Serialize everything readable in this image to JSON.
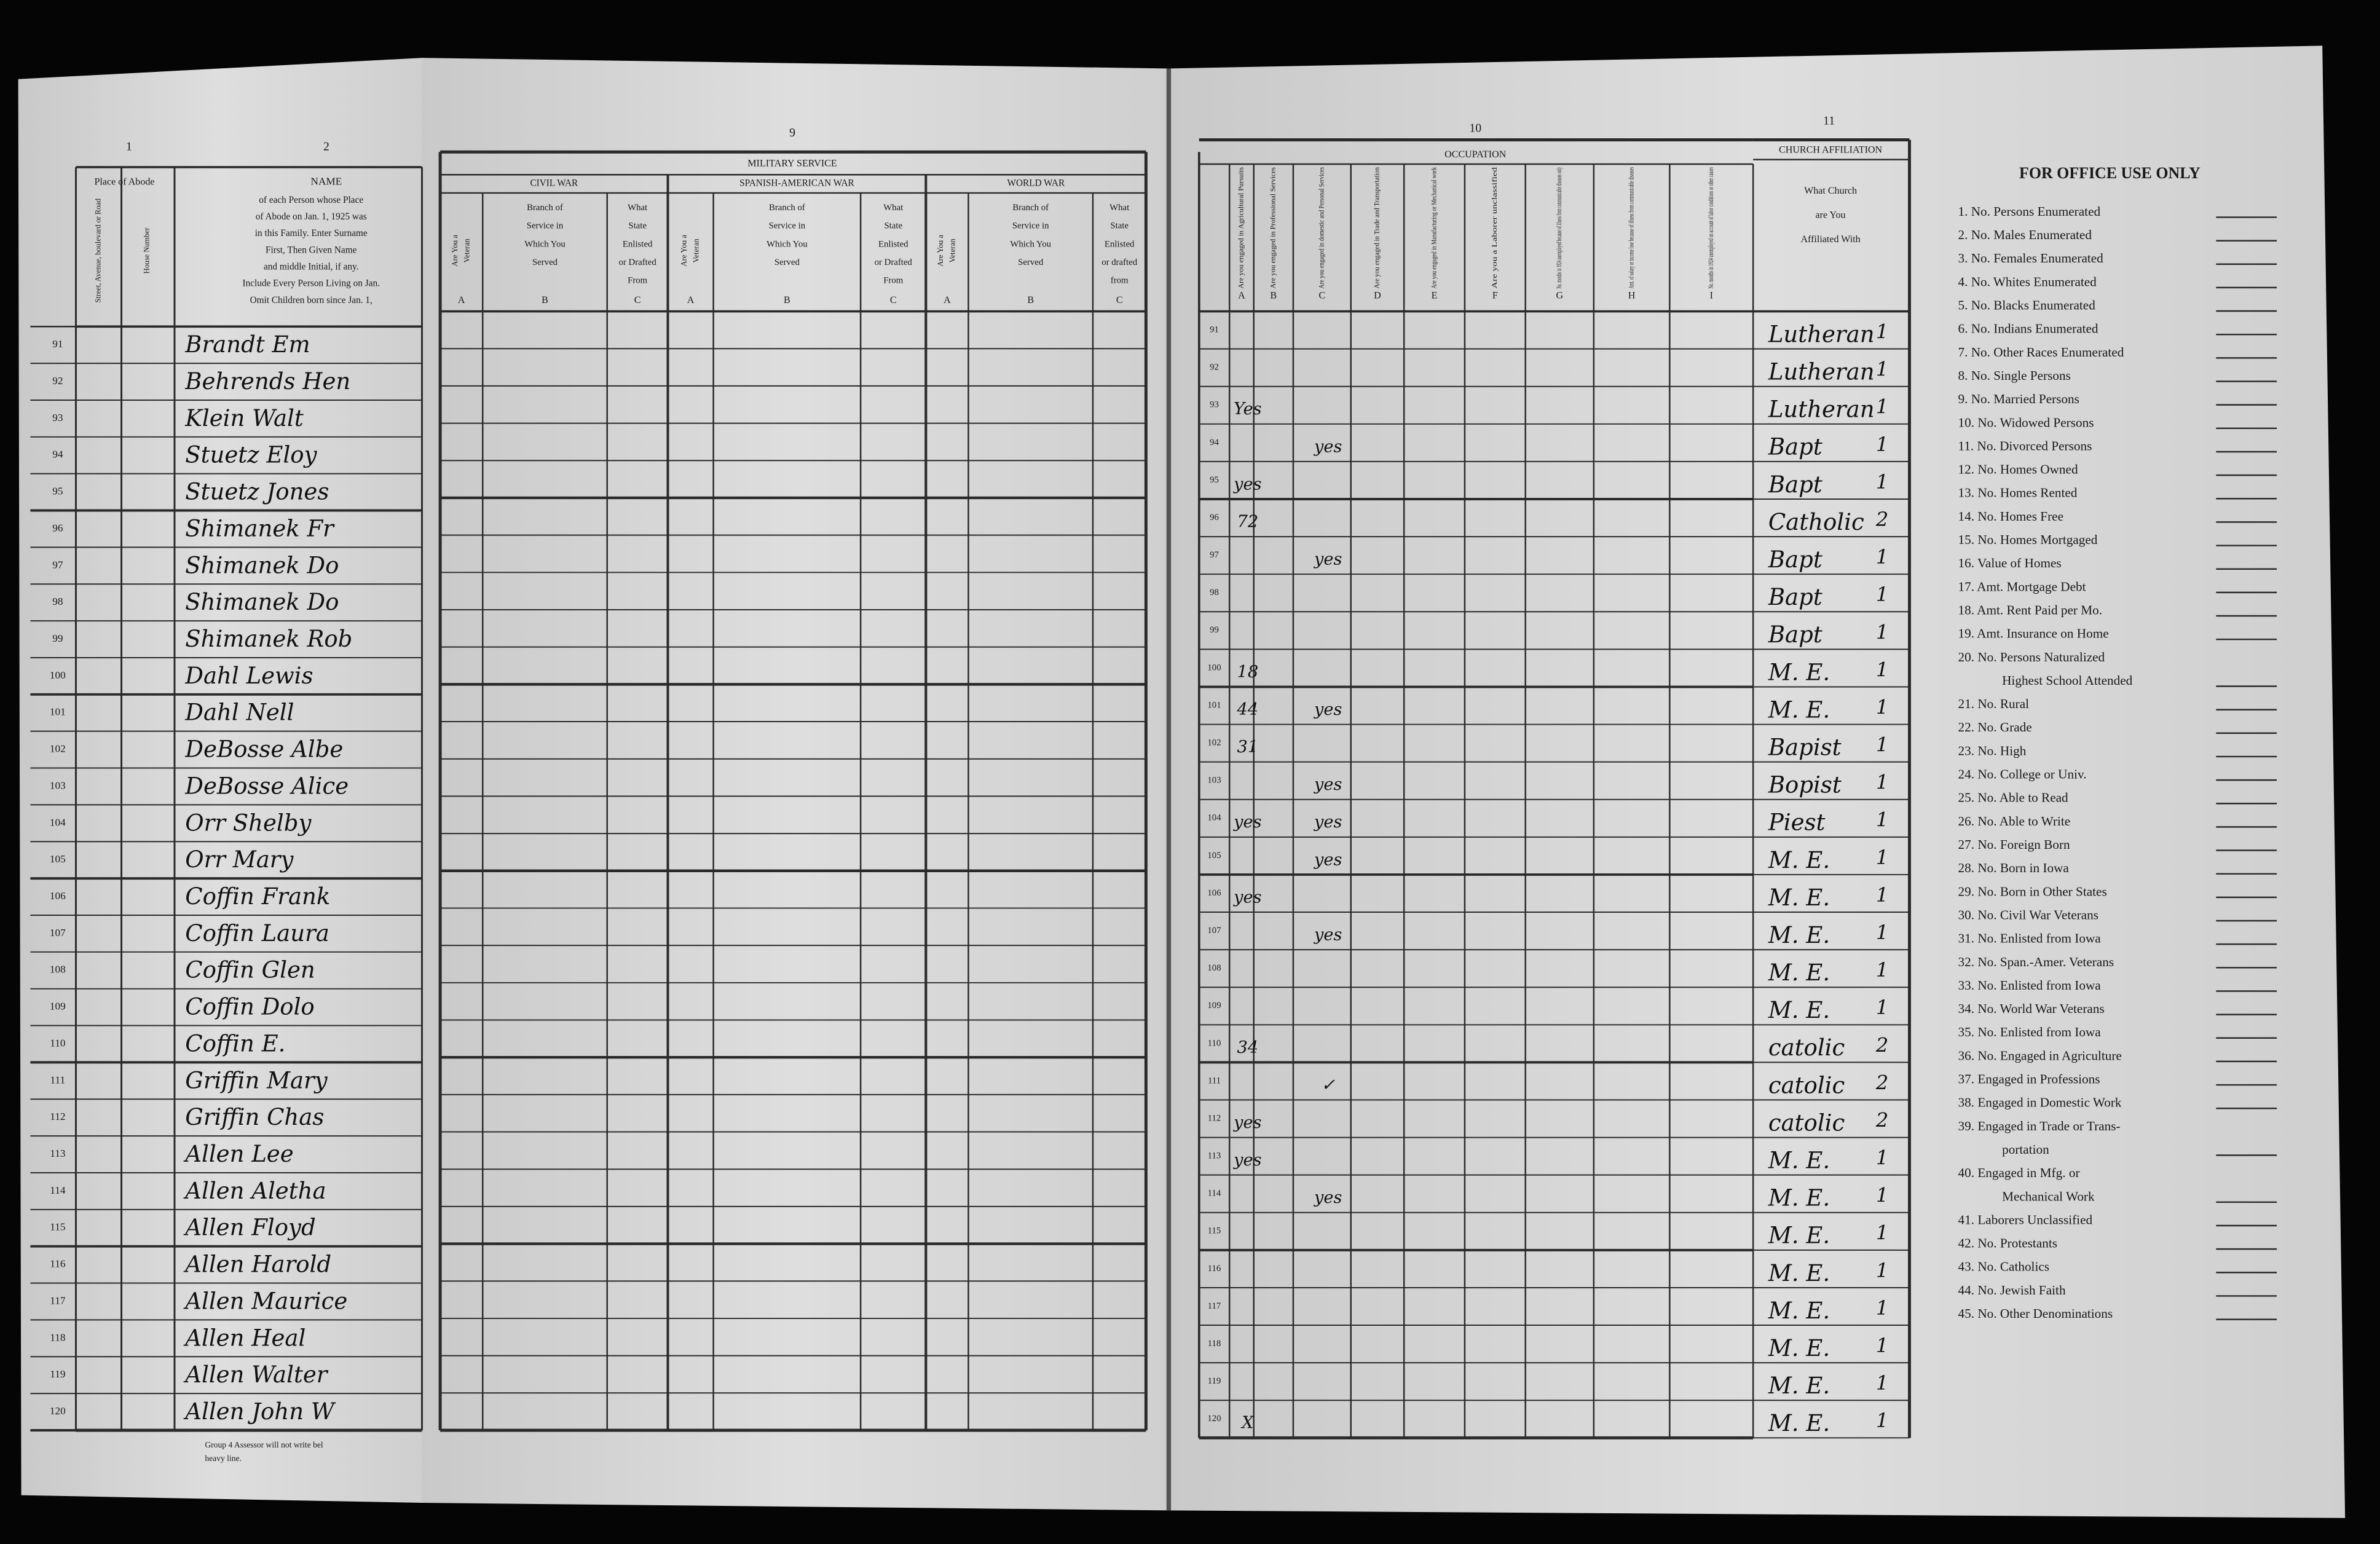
{
  "column_numbers": {
    "abode": "1",
    "name": "2",
    "military": "9",
    "occupation": "10",
    "church": "11"
  },
  "place_of_abode": {
    "title": "Place of Abode",
    "street": "Street, Avenue, boulevard or Road",
    "house": "House Number"
  },
  "name_header": {
    "title": "NAME",
    "lines": [
      "of each Person whose Place",
      "of Abode on Jan. 1, 1925 was",
      "in this Family. Enter Surname",
      "First, Then Given Name",
      "and middle Initial, if any.",
      "Include Every Person Living on Jan.",
      "Omit Children born since Jan. 1,"
    ]
  },
  "footer": [
    "Group 4 Assessor will not write bel",
    "heavy line."
  ],
  "military": {
    "title": "MILITARY SERVICE",
    "wars": [
      {
        "name": "CIVIL WAR",
        "columns": [
          {
            "lines": [
              "Are You a",
              "Veteran"
            ],
            "letter": "A"
          },
          {
            "lines": [
              "Branch of",
              "Service in",
              "Which You",
              "Served"
            ],
            "letter": "B"
          },
          {
            "lines": [
              "What",
              "State",
              "Enlisted",
              "or Drafted",
              "From"
            ],
            "letter": "C"
          }
        ]
      },
      {
        "name": "SPANISH-AMERICAN WAR",
        "columns": [
          {
            "lines": [
              "Are You a",
              "Veteran"
            ],
            "letter": "A"
          },
          {
            "lines": [
              "Branch of",
              "Service in",
              "Which You",
              "Served"
            ],
            "letter": "B"
          },
          {
            "lines": [
              "What",
              "State",
              "Enlisted",
              "or Drafted",
              "From"
            ],
            "letter": "C"
          }
        ]
      },
      {
        "name": "WORLD WAR",
        "columns": [
          {
            "lines": [
              "Are You a",
              "Veteran"
            ],
            "letter": "A"
          },
          {
            "lines": [
              "Branch of",
              "Service in",
              "Which You",
              "Served"
            ],
            "letter": "B"
          },
          {
            "lines": [
              "What",
              "State",
              "Enlisted",
              "or drafted",
              "from"
            ],
            "letter": "C"
          }
        ]
      }
    ]
  },
  "occupation": {
    "title": "OCCUPATION",
    "columns": [
      {
        "text": "Are you engaged in Agricultural Pursuits",
        "letter": "A"
      },
      {
        "text": "Are you engaged in Professional Services",
        "letter": "B"
      },
      {
        "text": "Are you engaged in domestic and Personal Services",
        "letter": "C"
      },
      {
        "text": "Are you engaged in Trade and Transportation",
        "letter": "D"
      },
      {
        "text": "Are you engaged in Manufacturing or Mechanical work",
        "letter": "E"
      },
      {
        "text": "Are you a Laborer unclassified",
        "letter": "F"
      },
      {
        "text": "No. months in 1924 unemployed because of illness from communicable diseases only",
        "letter": "G"
      },
      {
        "text": "Amt. of salary or income lose because of illness from communicable diseases",
        "letter": "H"
      },
      {
        "text": "No. months in 1924 unemployed on account of labor conditions or other causes",
        "letter": "I"
      }
    ]
  },
  "church": {
    "title": "CHURCH AFFILIATION",
    "lines": [
      "What Church",
      "are You",
      "Affiliated With"
    ]
  },
  "rows": [
    {
      "number": "91",
      "name": "Brandt Em",
      "church": "Lutheran",
      "count": "1"
    },
    {
      "number": "92",
      "name": "Behrends Hen",
      "church": "Lutheran",
      "count": "1"
    },
    {
      "number": "93",
      "name": "Klein Walt",
      "occ_a": "Yes",
      "church": "Lutheran",
      "count": "1"
    },
    {
      "number": "94",
      "name": "Stuetz Eloy",
      "occ_c": "yes",
      "church": "Bapt",
      "count": "1"
    },
    {
      "number": "95",
      "name": "Stuetz Jones",
      "occ_a": "yes",
      "church": "Bapt",
      "count": "1"
    },
    {
      "number": "96",
      "name": "Shimanek Fr",
      "occ_a": "72",
      "church": "Catholic",
      "count": "2"
    },
    {
      "number": "97",
      "name": "Shimanek Do",
      "occ_c": "yes",
      "church": "Bapt",
      "count": "1"
    },
    {
      "number": "98",
      "name": "Shimanek Do",
      "church": "Bapt",
      "count": "1"
    },
    {
      "number": "99",
      "name": "Shimanek Rob",
      "church": "Bapt",
      "count": "1"
    },
    {
      "number": "100",
      "name": "Dahl Lewis",
      "occ_a": "18",
      "church": "M. E.",
      "count": "1"
    },
    {
      "number": "101",
      "name": "Dahl Nell",
      "occ_a": "44",
      "occ_c": "yes",
      "church": "M. E.",
      "count": "1"
    },
    {
      "number": "102",
      "name": "DeBosse Albe",
      "occ_a": "31",
      "church": "Bapist",
      "count": "1"
    },
    {
      "number": "103",
      "name": "DeBosse Alice",
      "occ_c": "yes",
      "church": "Bopist",
      "count": "1"
    },
    {
      "number": "104",
      "name": "Orr Shelby",
      "occ_a": "yes",
      "occ_c": "yes",
      "church": "Piest",
      "count": "1"
    },
    {
      "number": "105",
      "name": "Orr Mary",
      "occ_c": "yes",
      "church": "M. E.",
      "count": "1"
    },
    {
      "number": "106",
      "name": "Coffin Frank",
      "occ_a": "yes",
      "church": "M. E.",
      "count": "1"
    },
    {
      "number": "107",
      "name": "Coffin Laura",
      "occ_c": "yes",
      "church": "M. E.",
      "count": "1"
    },
    {
      "number": "108",
      "name": "Coffin Glen",
      "church": "M. E.",
      "count": "1"
    },
    {
      "number": "109",
      "name": "Coffin Dolo",
      "church": "M. E.",
      "count": "1"
    },
    {
      "number": "110",
      "name": "Coffin E.",
      "occ_a": "34",
      "church": "catolic",
      "count": "2"
    },
    {
      "number": "111",
      "name": "Griffin Mary",
      "occ_c": "✓",
      "church": "catolic",
      "count": "2"
    },
    {
      "number": "112",
      "name": "Griffin Chas",
      "occ_a": "yes",
      "church": "catolic",
      "count": "2"
    },
    {
      "number": "113",
      "name": "Allen Lee",
      "occ_a": "yes",
      "church": "M. E.",
      "count": "1"
    },
    {
      "number": "114",
      "name": "Allen Aletha",
      "occ_c": "yes",
      "church": "M. E.",
      "count": "1"
    },
    {
      "number": "115",
      "name": "Allen Floyd",
      "church": "M. E.",
      "count": "1"
    },
    {
      "number": "116",
      "name": "Allen Harold",
      "church": "M. E.",
      "count": "1"
    },
    {
      "number": "117",
      "name": "Allen Maurice",
      "church": "M. E.",
      "count": "1"
    },
    {
      "number": "118",
      "name": "Allen Heal",
      "church": "M. E.",
      "count": "1"
    },
    {
      "number": "119",
      "name": "Allen Walter",
      "church": "M. E.",
      "count": "1"
    },
    {
      "number": "120",
      "name": "Allen John W",
      "occ_a": "X",
      "church": "M. E.",
      "count": "1"
    }
  ],
  "office_use": {
    "title": "FOR OFFICE USE ONLY",
    "items": [
      [
        "1. No. Persons Enumerated"
      ],
      [
        "2. No. Males Enumerated"
      ],
      [
        "3. No. Females Enumerated"
      ],
      [
        "4. No. Whites Enumerated"
      ],
      [
        "5. No. Blacks Enumerated"
      ],
      [
        "6. No. Indians Enumerated"
      ],
      [
        "7. No. Other Races Enumerated"
      ],
      [
        "8. No. Single Persons"
      ],
      [
        "9. No. Married Persons"
      ],
      [
        "10. No. Widowed Persons"
      ],
      [
        "11. No. Divorced Persons"
      ],
      [
        "12. No. Homes Owned"
      ],
      [
        "13. No. Homes Rented"
      ],
      [
        "14. No. Homes Free"
      ],
      [
        "15. No. Homes Mortgaged"
      ],
      [
        "16. Value of Homes"
      ],
      [
        "17. Amt. Mortgage Debt"
      ],
      [
        "18. Amt. Rent Paid per Mo."
      ],
      [
        "19. Amt. Insurance on Home"
      ],
      [
        "20. No. Persons Naturalized",
        "Highest School Attended"
      ],
      [
        "21. No. Rural"
      ],
      [
        "22. No. Grade"
      ],
      [
        "23. No. High"
      ],
      [
        "24. No. College or Univ."
      ],
      [
        "25. No. Able to Read"
      ],
      [
        "26. No. Able to Write"
      ],
      [
        "27. No. Foreign Born"
      ],
      [
        "28. No. Born in Iowa"
      ],
      [
        "29. No. Born in Other States"
      ],
      [
        "30. No. Civil War Veterans"
      ],
      [
        "31. No. Enlisted from Iowa"
      ],
      [
        "32. No. Span.-Amer. Veterans"
      ],
      [
        "33. No. Enlisted from Iowa"
      ],
      [
        "34. No. World War Veterans"
      ],
      [
        "35. No. Enlisted from Iowa"
      ],
      [
        "36. No. Engaged in Agriculture"
      ],
      [
        "37. Engaged in Professions"
      ],
      [
        "38. Engaged in Domestic Work"
      ],
      [
        "39. Engaged in Trade or Trans-",
        "portation"
      ],
      [
        "40. Engaged in Mfg. or",
        "Mechanical Work"
      ],
      [
        "41. Laborers Unclassified"
      ],
      [
        "42. No. Protestants"
      ],
      [
        "43. No. Catholics"
      ],
      [
        "44. No. Jewish Faith"
      ],
      [
        "45. No. Other Denominations"
      ]
    ]
  }
}
